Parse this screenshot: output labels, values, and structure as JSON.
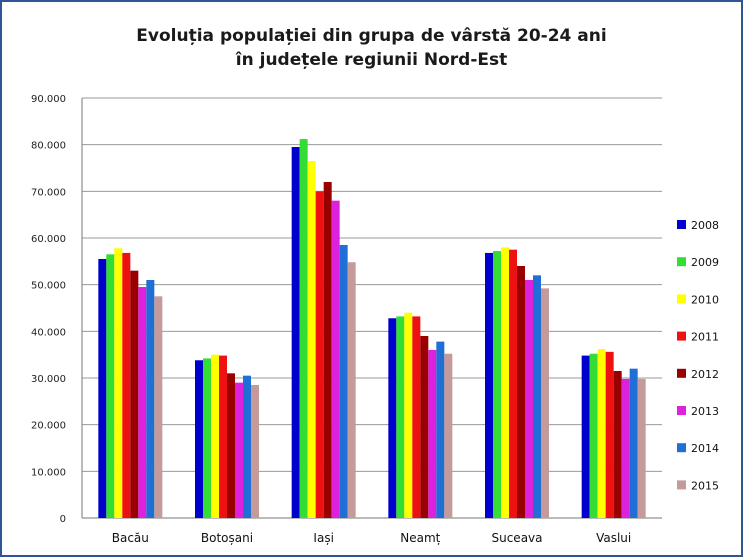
{
  "chart_data": {
    "type": "bar",
    "title_line1": "Evoluția populației din grupa de vârstă 20-24 ani",
    "title_line2": "în județele regiunii Nord-Est",
    "xlabel": "",
    "ylabel": "",
    "ylim": [
      0,
      90000
    ],
    "yticks": [
      0,
      10000,
      20000,
      30000,
      40000,
      50000,
      60000,
      70000,
      80000,
      90000
    ],
    "ytick_labels": [
      "0",
      "10.000",
      "20.000",
      "30.000",
      "40.000",
      "50.000",
      "60.000",
      "70.000",
      "80.000",
      "90.000"
    ],
    "grid": true,
    "legend_position": "right",
    "categories": [
      "Bacău",
      "Botoșani",
      "Iași",
      "Neamț",
      "Suceava",
      "Vaslui"
    ],
    "series": [
      {
        "name": "2008",
        "color": "#0000cc",
        "values": [
          55500,
          33800,
          79500,
          42800,
          56800,
          34800
        ]
      },
      {
        "name": "2009",
        "color": "#33dd33",
        "values": [
          56500,
          34200,
          81200,
          43200,
          57200,
          35200
        ]
      },
      {
        "name": "2010",
        "color": "#ffff00",
        "values": [
          57800,
          35000,
          76500,
          44000,
          58000,
          36200
        ]
      },
      {
        "name": "2011",
        "color": "#ee1111",
        "values": [
          56800,
          34800,
          70000,
          43200,
          57500,
          35600
        ]
      },
      {
        "name": "2012",
        "color": "#990000",
        "values": [
          53000,
          31000,
          72000,
          39000,
          54000,
          31500
        ]
      },
      {
        "name": "2013",
        "color": "#dd22dd",
        "values": [
          49500,
          29000,
          68000,
          36000,
          51000,
          29800
        ]
      },
      {
        "name": "2014",
        "color": "#1f6fd6",
        "values": [
          51000,
          30500,
          58500,
          37800,
          52000,
          32000
        ]
      },
      {
        "name": "2015",
        "color": "#c49a9a",
        "values": [
          47500,
          28500,
          54800,
          35200,
          49200,
          29800
        ]
      }
    ]
  }
}
